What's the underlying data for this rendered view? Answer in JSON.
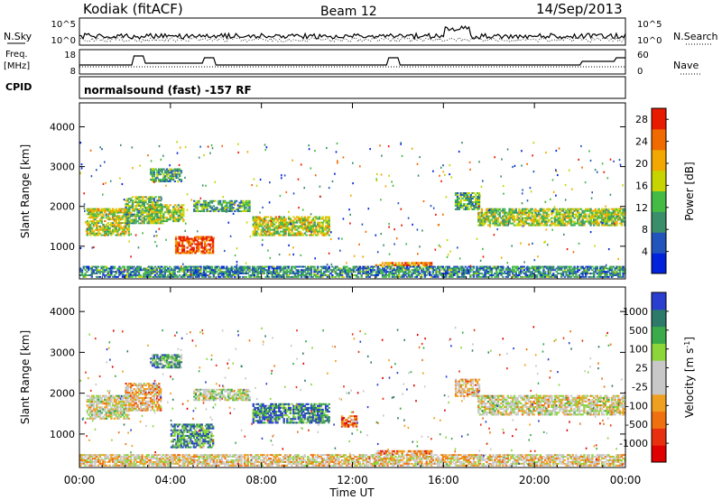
{
  "header": {
    "station": "Kodiak (fitACF)",
    "beam": "Beam 12",
    "date": "14/Sep/2013"
  },
  "noise_panel": {
    "left_label": "N.Sky",
    "right_label": "N.Search",
    "tick_top": "10^5",
    "tick_bottom": "10^0"
  },
  "freq_panel": {
    "left_label_line1": "Freq.",
    "left_label_line2": "[MHz]",
    "left_tick_top": "18",
    "left_tick_bottom": "8",
    "right_label": "Nave",
    "right_tick_top": "60",
    "right_tick_bottom": "0"
  },
  "cpid": {
    "label": "CPID",
    "value": "normalsound (fast) -157 RF"
  },
  "colors": {
    "power_scale": [
      "#0022dd",
      "#2255bb",
      "#3a8f6a",
      "#44bb44",
      "#c8d400",
      "#f2a800",
      "#f06a00",
      "#e81a00"
    ],
    "velocity_scale": [
      "#2a3fcf",
      "#2e7a6a",
      "#3aaa4a",
      "#8dd63a",
      "#c8c8c8",
      "#c8c8c8",
      "#f0a020",
      "#f07010",
      "#e83010",
      "#e00000"
    ],
    "ground_scatter": "#b4b4b4"
  },
  "chart_data": [
    {
      "type": "heatmap",
      "name": "power",
      "xlabel": "Time UT",
      "ylabel": "Slant Range [km]",
      "x_ticks": [
        "00:00",
        "04:00",
        "08:00",
        "12:00",
        "16:00",
        "20:00",
        "00:00"
      ],
      "y_ticks": [
        "1000",
        "2000",
        "3000",
        "4000"
      ],
      "xlim_hours": [
        0,
        24
      ],
      "ylim_km": [
        180,
        4600
      ],
      "colorbar_label": "Power [dB]",
      "colorbar_ticks": [
        "4",
        "8",
        "12",
        "16",
        "20",
        "24",
        "28"
      ],
      "colorbar_range": [
        0,
        30
      ],
      "scatter_regions": [
        {
          "t0": 0.3,
          "t1": 2.2,
          "r0": 1300,
          "r1": 2000,
          "level": 0.55
        },
        {
          "t0": 2.0,
          "t1": 3.6,
          "r0": 1600,
          "r1": 2300,
          "level": 0.45
        },
        {
          "t0": 3.1,
          "t1": 4.5,
          "r0": 2650,
          "r1": 3000,
          "level": 0.35
        },
        {
          "t0": 3.0,
          "t1": 4.6,
          "r0": 1650,
          "r1": 2100,
          "level": 0.5
        },
        {
          "t0": 4.2,
          "t1": 5.9,
          "r0": 850,
          "r1": 1300,
          "level": 0.85
        },
        {
          "t0": 5.0,
          "t1": 7.5,
          "r0": 1900,
          "r1": 2200,
          "level": 0.35
        },
        {
          "t0": 7.6,
          "t1": 11.0,
          "r0": 1300,
          "r1": 1800,
          "level": 0.55
        },
        {
          "t0": 13.0,
          "t1": 15.5,
          "r0": 550,
          "r1": 660,
          "level": 0.8
        },
        {
          "t0": 16.5,
          "t1": 17.6,
          "r0": 1950,
          "r1": 2400,
          "level": 0.4
        },
        {
          "t0": 17.5,
          "t1": 24.0,
          "r0": 1550,
          "r1": 2000,
          "level": 0.5
        },
        {
          "t0": 0.0,
          "t1": 24.0,
          "r0": 250,
          "r1": 550,
          "level": 0.3
        }
      ]
    },
    {
      "type": "heatmap",
      "name": "velocity",
      "xlabel": "Time UT",
      "ylabel": "Slant Range [km]",
      "x_ticks": [
        "00:00",
        "04:00",
        "08:00",
        "12:00",
        "16:00",
        "20:00",
        "00:00"
      ],
      "y_ticks": [
        "1000",
        "2000",
        "3000",
        "4000"
      ],
      "xlim_hours": [
        0,
        24
      ],
      "ylim_km": [
        180,
        4600
      ],
      "colorbar_label": "Velocity [m s^-1]",
      "colorbar_ticks": [
        "1000",
        "500",
        "100",
        "25",
        "-25",
        "-100",
        "-500",
        "-1000"
      ],
      "scatter_regions": [
        {
          "t0": 0.3,
          "t1": 2.2,
          "r0": 1400,
          "r1": 2000,
          "level": 0.5
        },
        {
          "t0": 2.0,
          "t1": 3.6,
          "r0": 1600,
          "r1": 2300,
          "level": 0.6
        },
        {
          "t0": 3.1,
          "t1": 4.5,
          "r0": 2650,
          "r1": 3000,
          "level": 0.25
        },
        {
          "t0": 4.0,
          "t1": 5.9,
          "r0": 700,
          "r1": 1300,
          "level": 0.2
        },
        {
          "t0": 5.0,
          "t1": 7.5,
          "r0": 1850,
          "r1": 2150,
          "level": 0.45
        },
        {
          "t0": 7.6,
          "t1": 11.0,
          "r0": 1300,
          "r1": 1800,
          "level": 0.15
        },
        {
          "t0": 11.5,
          "t1": 12.2,
          "r0": 1200,
          "r1": 1500,
          "level": 0.75
        },
        {
          "t0": 13.0,
          "t1": 15.5,
          "r0": 550,
          "r1": 660,
          "level": 0.7
        },
        {
          "t0": 16.5,
          "t1": 17.6,
          "r0": 1950,
          "r1": 2400,
          "level": 0.6
        },
        {
          "t0": 17.5,
          "t1": 24.0,
          "r0": 1500,
          "r1": 2000,
          "level": 0.5
        },
        {
          "t0": 0.0,
          "t1": 24.0,
          "r0": 250,
          "r1": 550,
          "level": 0.55
        }
      ]
    }
  ]
}
